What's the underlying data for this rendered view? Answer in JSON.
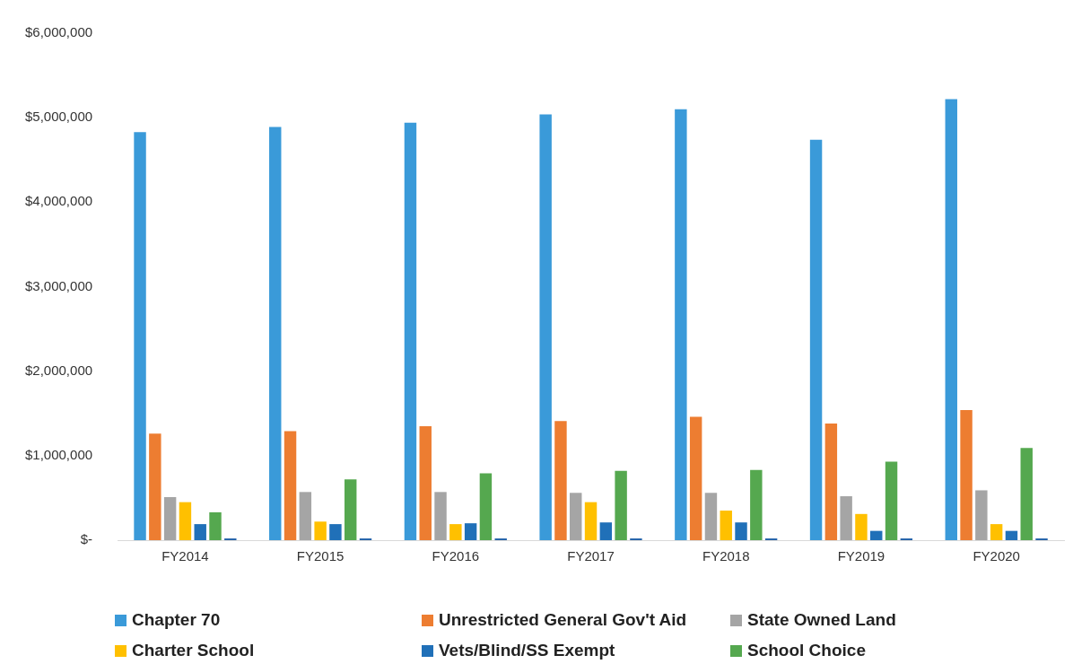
{
  "chart_data": {
    "type": "bar",
    "categories": [
      "FY2014",
      "FY2015",
      "FY2016",
      "FY2017",
      "FY2018",
      "FY2019",
      "FY2020"
    ],
    "series": [
      {
        "name": "Chapter 70",
        "color": "#3a9ad9",
        "values": [
          4830000,
          4890000,
          4940000,
          5040000,
          5100000,
          4740000,
          5220000
        ]
      },
      {
        "name": "Unrestricted General Gov't Aid",
        "color": "#ed7d31",
        "values": [
          1260000,
          1290000,
          1350000,
          1410000,
          1460000,
          1380000,
          1540000
        ]
      },
      {
        "name": "State Owned Land",
        "color": "#a5a5a5",
        "values": [
          510000,
          570000,
          570000,
          560000,
          560000,
          520000,
          590000
        ]
      },
      {
        "name": "Charter School",
        "color": "#ffc000",
        "values": [
          450000,
          220000,
          190000,
          450000,
          350000,
          310000,
          190000
        ]
      },
      {
        "name": "Vets/Blind/SS Exempt",
        "color": "#2070b8",
        "values": [
          190000,
          190000,
          200000,
          210000,
          210000,
          110000,
          110000
        ]
      },
      {
        "name": "School Choice",
        "color": "#55a84f",
        "values": [
          330000,
          720000,
          790000,
          820000,
          830000,
          930000,
          1090000
        ]
      },
      {
        "color": "#1f5fa8",
        "values": [
          20000,
          20000,
          20000,
          20000,
          20000,
          20000,
          20000
        ]
      }
    ],
    "ylim": [
      0,
      6000000
    ],
    "yticks": [
      {
        "value": 0,
        "label": "$-"
      },
      {
        "value": 1000000,
        "label": "$1,000,000"
      },
      {
        "value": 2000000,
        "label": "$2,000,000"
      },
      {
        "value": 3000000,
        "label": "$3,000,000"
      },
      {
        "value": 4000000,
        "label": "$4,000,000"
      },
      {
        "value": 5000000,
        "label": "$5,000,000"
      },
      {
        "value": 6000000,
        "label": "$6,000,000"
      }
    ],
    "grid": false,
    "legend": "bottom"
  }
}
